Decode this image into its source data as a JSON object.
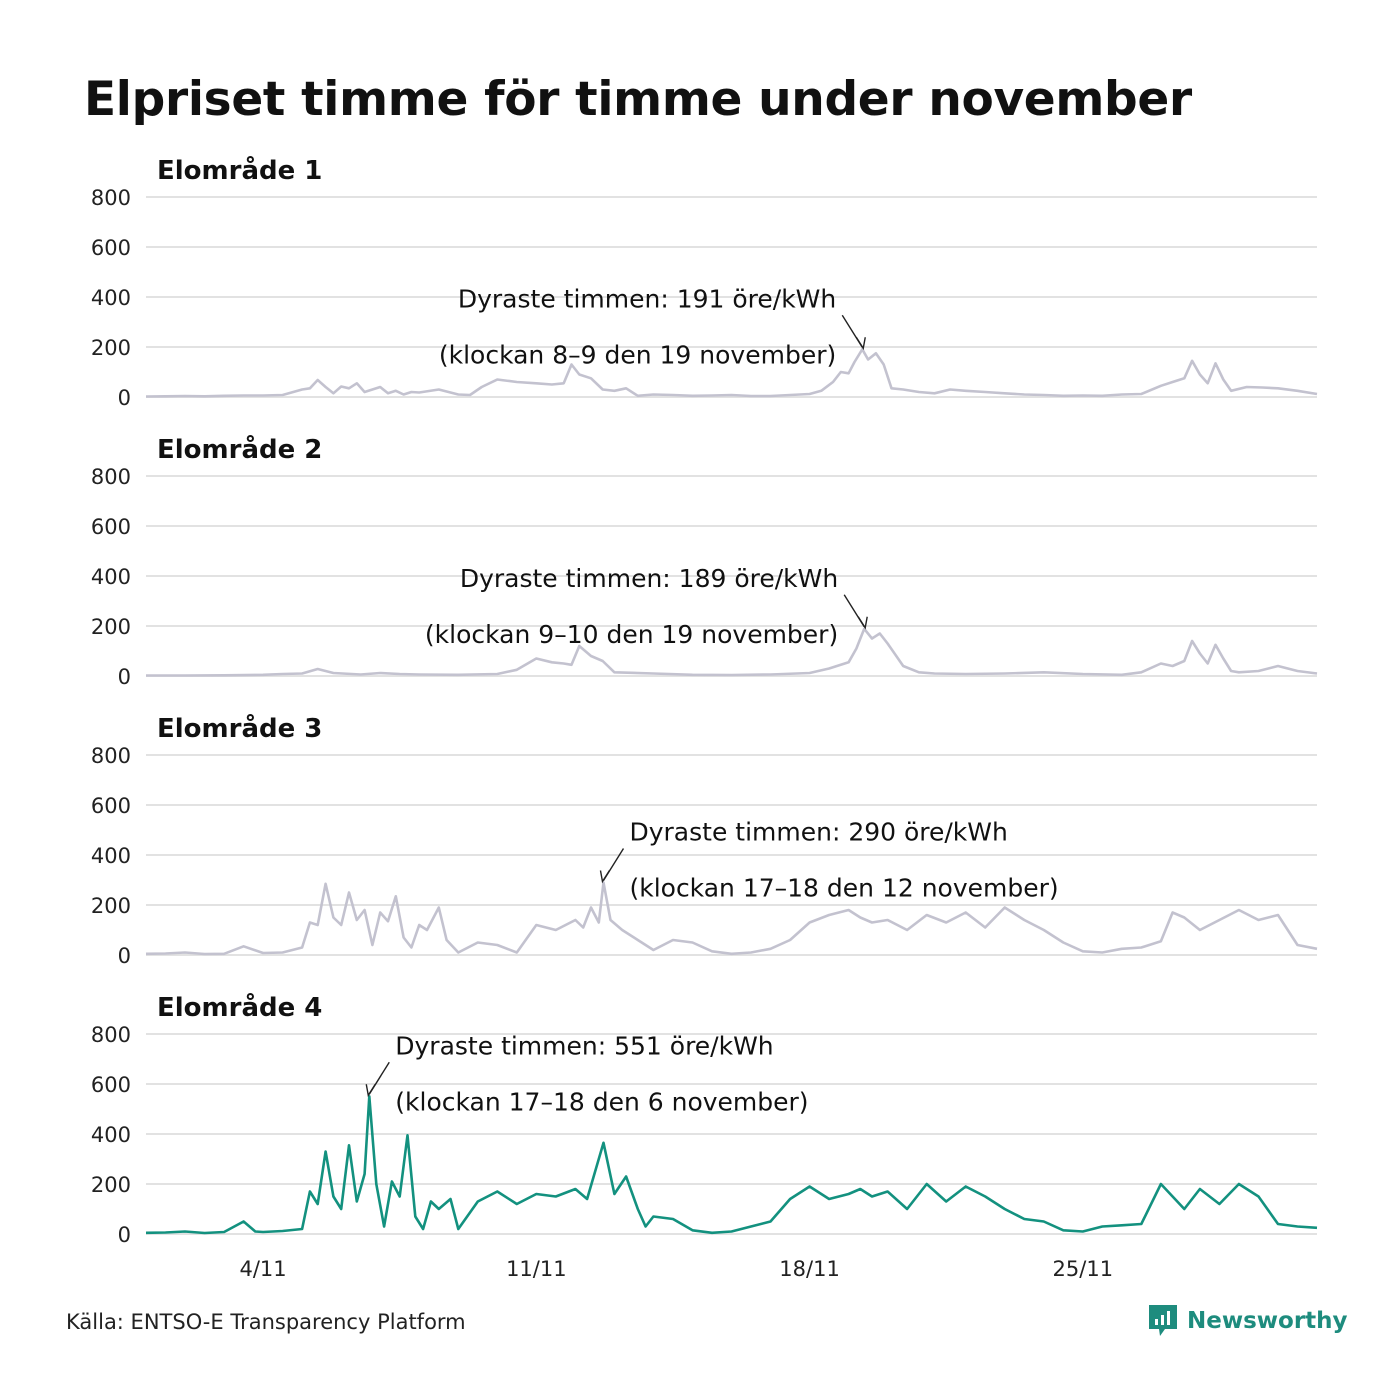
{
  "title": "Elpriset timme för timme under november",
  "source": "Källa: ENTSO-E Transparency Platform",
  "brand": {
    "name": "Newsworthy",
    "icon": "newsworthy-logo-icon",
    "color": "#1e8c7e"
  },
  "colors": {
    "muted_line": "#c3c2cf",
    "highlight_line": "#13917f",
    "grid": "#e2e2e2"
  },
  "chart_data": [
    {
      "type": "line",
      "title": "Elområde 1",
      "ylim": [
        0,
        800
      ],
      "yticks": [
        0,
        200,
        400,
        600,
        800
      ],
      "xlim": [
        1,
        31
      ],
      "xticks": [
        4,
        11,
        18,
        25
      ],
      "xtick_labels": [
        "4/11",
        "11/11",
        "18/11",
        "25/11"
      ],
      "highlight": false,
      "annotation": {
        "line1": "Dyraste timmen: 191 öre/kWh",
        "line2": "(klockan 8–9 den 19 november)",
        "x": 19.35,
        "y": 191,
        "side": "left"
      },
      "series": [
        {
          "x": [
            1,
            1.5,
            2,
            2.5,
            3,
            3.5,
            4,
            4.5,
            5,
            5.2,
            5.4,
            5.6,
            5.8,
            6,
            6.2,
            6.4,
            6.6,
            6.8,
            7,
            7.2,
            7.4,
            7.6,
            7.8,
            8,
            8.5,
            9,
            9.3,
            9.6,
            10,
            10.5,
            11,
            11.4,
            11.7,
            11.9,
            12.1,
            12.4,
            12.7,
            13,
            13.3,
            13.6,
            14,
            14.5,
            15,
            15.5,
            16,
            16.5,
            17,
            17.5,
            18,
            18.3,
            18.6,
            18.8,
            19,
            19.15,
            19.35,
            19.5,
            19.7,
            19.9,
            20.1,
            20.4,
            20.8,
            21.2,
            21.6,
            22,
            22.5,
            23,
            23.5,
            24,
            24.5,
            25,
            25.5,
            26,
            26.5,
            27,
            27.3,
            27.6,
            27.8,
            28,
            28.2,
            28.4,
            28.6,
            28.8,
            29.2,
            29.6,
            30,
            30.5,
            31
          ],
          "values": [
            2,
            3,
            4,
            3,
            5,
            6,
            6,
            8,
            30,
            35,
            68,
            40,
            15,
            42,
            35,
            55,
            20,
            30,
            40,
            15,
            25,
            10,
            20,
            18,
            30,
            10,
            8,
            40,
            70,
            60,
            55,
            50,
            55,
            130,
            90,
            75,
            30,
            25,
            35,
            5,
            10,
            8,
            5,
            6,
            8,
            4,
            4,
            8,
            12,
            25,
            60,
            100,
            95,
            140,
            191,
            150,
            175,
            130,
            35,
            30,
            20,
            15,
            30,
            25,
            20,
            15,
            10,
            8,
            5,
            6,
            5,
            10,
            12,
            45,
            60,
            75,
            145,
            90,
            55,
            135,
            70,
            25,
            40,
            38,
            35,
            25,
            12
          ]
        }
      ]
    },
    {
      "type": "line",
      "title": "Elområde 2",
      "ylim": [
        0,
        800
      ],
      "yticks": [
        0,
        200,
        400,
        600,
        800
      ],
      "xlim": [
        1,
        31
      ],
      "xticks": [
        4,
        11,
        18,
        25
      ],
      "xtick_labels": [
        "4/11",
        "11/11",
        "18/11",
        "25/11"
      ],
      "highlight": false,
      "annotation": {
        "line1": "Dyraste timmen: 189 öre/kWh",
        "line2": "(klockan 9–10 den 19 november)",
        "x": 19.4,
        "y": 189,
        "side": "left"
      },
      "series": [
        {
          "x": [
            1,
            2,
            3,
            4,
            4.5,
            5,
            5.4,
            5.8,
            6.5,
            7,
            7.5,
            8,
            9,
            10,
            10.5,
            11,
            11.4,
            11.7,
            11.9,
            12.1,
            12.4,
            12.7,
            13,
            14,
            15,
            16,
            17,
            18,
            18.5,
            19,
            19.2,
            19.4,
            19.6,
            19.8,
            20,
            20.4,
            20.8,
            21.2,
            22,
            23,
            24,
            25,
            26,
            26.5,
            27,
            27.3,
            27.6,
            27.8,
            28,
            28.2,
            28.4,
            28.6,
            28.8,
            29,
            29.5,
            30,
            30.5,
            31
          ],
          "values": [
            2,
            2,
            3,
            5,
            8,
            10,
            28,
            12,
            6,
            12,
            8,
            6,
            5,
            8,
            25,
            70,
            55,
            50,
            45,
            120,
            80,
            60,
            15,
            10,
            5,
            4,
            6,
            12,
            30,
            55,
            110,
            189,
            150,
            170,
            130,
            40,
            15,
            10,
            8,
            10,
            15,
            8,
            5,
            15,
            50,
            40,
            60,
            140,
            90,
            50,
            125,
            70,
            20,
            15,
            20,
            40,
            20,
            10
          ]
        }
      ]
    },
    {
      "type": "line",
      "title": "Elområde 3",
      "ylim": [
        0,
        800
      ],
      "yticks": [
        0,
        200,
        400,
        600,
        800
      ],
      "xlim": [
        1,
        31
      ],
      "xticks": [
        4,
        11,
        18,
        25
      ],
      "xtick_labels": [
        "4/11",
        "11/11",
        "18/11",
        "25/11"
      ],
      "highlight": false,
      "annotation": {
        "line1": "Dyraste timmen: 290 öre/kWh",
        "line2": "(klockan 17–18 den 12 november)",
        "x": 12.72,
        "y": 290,
        "side": "right"
      },
      "series": [
        {
          "x": [
            1,
            1.5,
            2,
            2.5,
            3,
            3.5,
            4,
            4.5,
            5,
            5.2,
            5.4,
            5.6,
            5.8,
            6,
            6.2,
            6.4,
            6.6,
            6.8,
            7,
            7.2,
            7.4,
            7.6,
            7.8,
            8,
            8.2,
            8.5,
            8.7,
            9,
            9.5,
            10,
            10.5,
            11,
            11.5,
            12,
            12.2,
            12.4,
            12.6,
            12.72,
            12.9,
            13.2,
            13.6,
            14,
            14.5,
            15,
            15.5,
            16,
            16.5,
            17,
            17.5,
            18,
            18.5,
            19,
            19.3,
            19.6,
            20,
            20.5,
            21,
            21.5,
            22,
            22.5,
            23,
            23.5,
            24,
            24.5,
            25,
            25.5,
            26,
            26.5,
            27,
            27.3,
            27.6,
            28,
            28.5,
            29,
            29.5,
            30,
            30.5,
            31
          ],
          "values": [
            5,
            6,
            10,
            4,
            5,
            35,
            8,
            10,
            30,
            130,
            120,
            285,
            150,
            120,
            250,
            140,
            180,
            40,
            170,
            135,
            235,
            70,
            30,
            120,
            100,
            190,
            60,
            10,
            50,
            40,
            10,
            120,
            100,
            140,
            110,
            190,
            130,
            290,
            140,
            100,
            60,
            20,
            60,
            50,
            15,
            5,
            10,
            25,
            60,
            130,
            160,
            180,
            150,
            130,
            140,
            100,
            160,
            130,
            170,
            110,
            190,
            140,
            100,
            50,
            15,
            10,
            25,
            30,
            55,
            170,
            150,
            100,
            140,
            180,
            140,
            160,
            40,
            25
          ]
        }
      ]
    },
    {
      "type": "line",
      "title": "Elområde 4",
      "ylim": [
        0,
        800
      ],
      "yticks": [
        0,
        200,
        400,
        600,
        800
      ],
      "xlim": [
        1,
        31
      ],
      "xticks": [
        4,
        11,
        18,
        25
      ],
      "xtick_labels": [
        "4/11",
        "11/11",
        "18/11",
        "25/11"
      ],
      "highlight": true,
      "annotation": {
        "line1": "Dyraste timmen: 551 öre/kWh",
        "line2": "(klockan 17–18 den 6 november)",
        "x": 6.72,
        "y": 551,
        "side": "right"
      },
      "series": [
        {
          "x": [
            1,
            1.5,
            2,
            2.5,
            3,
            3.5,
            3.8,
            4,
            4.5,
            5,
            5.2,
            5.4,
            5.6,
            5.8,
            6,
            6.2,
            6.4,
            6.6,
            6.72,
            6.9,
            7.1,
            7.3,
            7.5,
            7.7,
            7.9,
            8.1,
            8.3,
            8.5,
            8.8,
            9,
            9.5,
            10,
            10.5,
            11,
            11.5,
            12,
            12.3,
            12.72,
            13,
            13.3,
            13.6,
            13.8,
            14,
            14.5,
            15,
            15.5,
            16,
            16.5,
            17,
            17.5,
            18,
            18.5,
            19,
            19.3,
            19.6,
            20,
            20.5,
            21,
            21.5,
            22,
            22.5,
            23,
            23.5,
            24,
            24.5,
            25,
            25.5,
            26,
            26.5,
            27,
            27.3,
            27.6,
            28,
            28.5,
            29,
            29.5,
            30,
            30.5,
            31
          ],
          "values": [
            5,
            6,
            10,
            4,
            8,
            50,
            10,
            8,
            12,
            20,
            170,
            120,
            330,
            150,
            100,
            355,
            130,
            240,
            551,
            200,
            30,
            210,
            150,
            395,
            70,
            20,
            130,
            100,
            140,
            20,
            130,
            170,
            120,
            160,
            150,
            180,
            140,
            365,
            160,
            230,
            100,
            30,
            70,
            60,
            15,
            5,
            10,
            30,
            50,
            140,
            190,
            140,
            160,
            180,
            150,
            170,
            100,
            200,
            130,
            190,
            150,
            100,
            60,
            50,
            15,
            10,
            30,
            35,
            40,
            200,
            150,
            100,
            180,
            120,
            200,
            150,
            40,
            30,
            25
          ]
        }
      ]
    }
  ]
}
